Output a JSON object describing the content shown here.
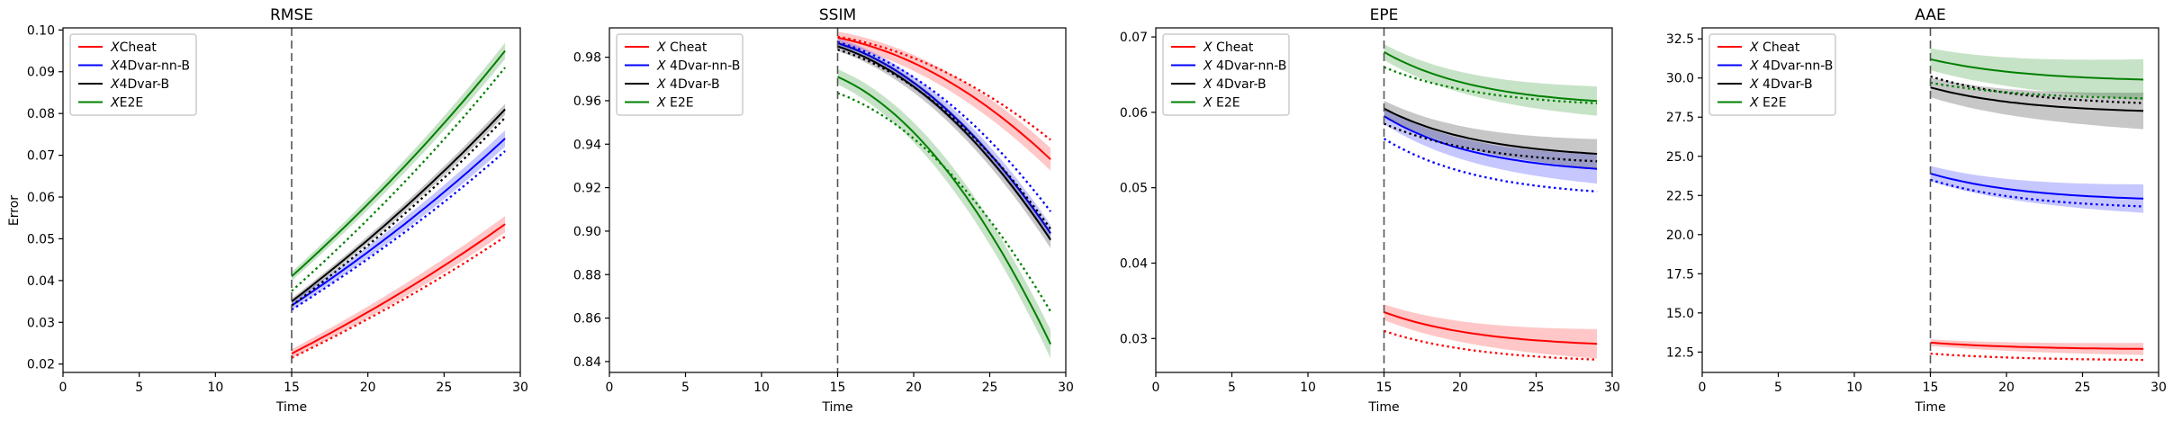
{
  "figure": {
    "ylabel": "Error",
    "xlabel": "Time"
  },
  "colors": {
    "cheat": "#ff0000",
    "nn": "#0000ff",
    "var": "#000000",
    "e2e": "#008000",
    "vline": "#555555"
  },
  "chart_data": [
    {
      "type": "line",
      "title": "RMSE",
      "xlabel": "Time",
      "ylabel": "Error",
      "xlim": [
        0,
        30
      ],
      "ylim": [
        0.018,
        0.1005
      ],
      "xticks": [
        0,
        5,
        10,
        15,
        20,
        25,
        30
      ],
      "yticks": [
        0.02,
        0.03,
        0.04,
        0.05,
        0.06,
        0.07,
        0.08,
        0.09,
        0.1
      ],
      "ytick_labels": [
        "0.02",
        "0.03",
        "0.04",
        "0.05",
        "0.06",
        "0.07",
        "0.08",
        "0.09",
        "0.10"
      ],
      "vline": 15,
      "x": [
        15,
        29
      ],
      "legend_position": "upper-left",
      "series": [
        {
          "name": "XCheat",
          "legend_main": "X",
          "legend_rest": "Cheat",
          "key": "cheat",
          "start": 0.0225,
          "end": 0.0535,
          "shape": "up",
          "band": 0.0015,
          "dotted_start": 0.0215,
          "dotted_end": 0.0505
        },
        {
          "name": "X4Dvar-nn-B",
          "legend_main": "X",
          "legend_rest": "4Dvar-nn-B",
          "key": "nn",
          "start": 0.034,
          "end": 0.074,
          "shape": "up",
          "band": 0.0015,
          "dotted_start": 0.033,
          "dotted_end": 0.071
        },
        {
          "name": "X4Dvar-B",
          "legend_main": "X",
          "legend_rest": "4Dvar-B",
          "key": "var",
          "start": 0.035,
          "end": 0.081,
          "shape": "up",
          "band": 0.001,
          "dotted_start": 0.034,
          "dotted_end": 0.079
        },
        {
          "name": "XE2E",
          "legend_main": "X",
          "legend_rest": "E2E",
          "key": "e2e",
          "start": 0.041,
          "end": 0.095,
          "shape": "up",
          "band": 0.0015,
          "dotted_start": 0.0375,
          "dotted_end": 0.091
        }
      ]
    },
    {
      "type": "line",
      "title": "SSIM",
      "xlabel": "Time",
      "ylabel": "",
      "xlim": [
        0,
        30
      ],
      "ylim": [
        0.835,
        0.9935
      ],
      "xticks": [
        0,
        5,
        10,
        15,
        20,
        25,
        30
      ],
      "yticks": [
        0.84,
        0.86,
        0.88,
        0.9,
        0.92,
        0.94,
        0.96,
        0.98
      ],
      "ytick_labels": [
        "0.84",
        "0.86",
        "0.88",
        "0.90",
        "0.92",
        "0.94",
        "0.96",
        "0.98"
      ],
      "vline": 15,
      "x": [
        15,
        29
      ],
      "legend_position": "upper-left",
      "series": [
        {
          "name": "X Cheat",
          "legend_main": "X",
          "legend_rest": " Cheat",
          "key": "cheat",
          "start": 0.989,
          "end": 0.933,
          "shape": "down",
          "band": 0.004,
          "dotted_start": 0.9895,
          "dotted_end": 0.942
        },
        {
          "name": "X 4Dvar-nn-B",
          "legend_main": "X",
          "legend_rest": " 4Dvar-nn-B",
          "key": "nn",
          "start": 0.9865,
          "end": 0.899,
          "shape": "down",
          "band": 0.003,
          "dotted_start": 0.987,
          "dotted_end": 0.909
        },
        {
          "name": "X 4Dvar-B",
          "legend_main": "X",
          "legend_rest": " 4Dvar-B",
          "key": "var",
          "start": 0.985,
          "end": 0.896,
          "shape": "down",
          "band": 0.003,
          "dotted_start": 0.9835,
          "dotted_end": 0.901
        },
        {
          "name": "X E2E",
          "legend_main": "X",
          "legend_rest": " E2E",
          "key": "e2e",
          "start": 0.971,
          "end": 0.848,
          "shape": "down",
          "band": 0.005,
          "dotted_start": 0.9635,
          "dotted_end": 0.863
        }
      ]
    },
    {
      "type": "line",
      "title": "EPE",
      "xlabel": "Time",
      "ylabel": "",
      "xlim": [
        0,
        30
      ],
      "ylim": [
        0.0255,
        0.0712
      ],
      "xticks": [
        0,
        5,
        10,
        15,
        20,
        25,
        30
      ],
      "yticks": [
        0.03,
        0.04,
        0.05,
        0.06,
        0.07
      ],
      "ytick_labels": [
        "0.03",
        "0.04",
        "0.05",
        "0.06",
        "0.07"
      ],
      "vline": 15,
      "x": [
        15,
        29
      ],
      "legend_position": "upper-left",
      "series": [
        {
          "name": "X Cheat",
          "legend_main": "X",
          "legend_rest": " Cheat",
          "key": "cheat",
          "start": 0.0335,
          "end": 0.0293,
          "shape": "decay",
          "band": 0.0015,
          "dotted_start": 0.031,
          "dotted_end": 0.0272
        },
        {
          "name": "X 4Dvar-nn-B",
          "legend_main": "X",
          "legend_rest": " 4Dvar-nn-B",
          "key": "nn",
          "start": 0.0595,
          "end": 0.0525,
          "shape": "decay",
          "band": 0.0015,
          "dotted_start": 0.0565,
          "dotted_end": 0.0495
        },
        {
          "name": "X 4Dvar-B",
          "legend_main": "X",
          "legend_rest": " 4Dvar-B",
          "key": "var",
          "start": 0.0605,
          "end": 0.0545,
          "shape": "decay",
          "band": 0.0015,
          "dotted_start": 0.0585,
          "dotted_end": 0.0535
        },
        {
          "name": "X E2E",
          "legend_main": "X",
          "legend_rest": " E2E",
          "key": "e2e",
          "start": 0.068,
          "end": 0.0615,
          "shape": "decay",
          "band": 0.0015,
          "dotted_start": 0.066,
          "dotted_end": 0.0612
        }
      ]
    },
    {
      "type": "line",
      "title": "AAE",
      "xlabel": "Time",
      "ylabel": "",
      "xlim": [
        0,
        30
      ],
      "ylim": [
        11.2,
        33.2
      ],
      "xticks": [
        0,
        5,
        10,
        15,
        20,
        25,
        30
      ],
      "yticks": [
        12.5,
        15.0,
        17.5,
        20.0,
        22.5,
        25.0,
        27.5,
        30.0,
        32.5
      ],
      "ytick_labels": [
        "12.5",
        "15.0",
        "17.5",
        "20.0",
        "22.5",
        "25.0",
        "27.5",
        "30.0",
        "32.5"
      ],
      "vline": 15,
      "x": [
        15,
        29
      ],
      "legend_position": "upper-left",
      "series": [
        {
          "name": "X Cheat",
          "legend_main": "X",
          "legend_rest": " Cheat",
          "key": "cheat",
          "start": 13.1,
          "end": 12.7,
          "shape": "decay",
          "band": 0.3,
          "dotted_start": 12.4,
          "dotted_end": 12.0
        },
        {
          "name": "X 4Dvar-nn-B",
          "legend_main": "X",
          "legend_rest": " 4Dvar-nn-B",
          "key": "nn",
          "start": 23.9,
          "end": 22.3,
          "shape": "decay",
          "band": 0.7,
          "dotted_start": 23.5,
          "dotted_end": 21.8
        },
        {
          "name": "X 4Dvar-B",
          "legend_main": "X",
          "legend_rest": " 4Dvar-B",
          "key": "var",
          "start": 29.4,
          "end": 27.9,
          "shape": "decay",
          "band": 0.9,
          "dotted_start": 30.1,
          "dotted_end": 28.4
        },
        {
          "name": "X E2E",
          "legend_main": "X",
          "legend_rest": " E2E",
          "key": "e2e",
          "start": 31.2,
          "end": 29.9,
          "shape": "decay",
          "band": 1.0,
          "dotted_start": 29.7,
          "dotted_end": 28.7
        }
      ]
    }
  ]
}
